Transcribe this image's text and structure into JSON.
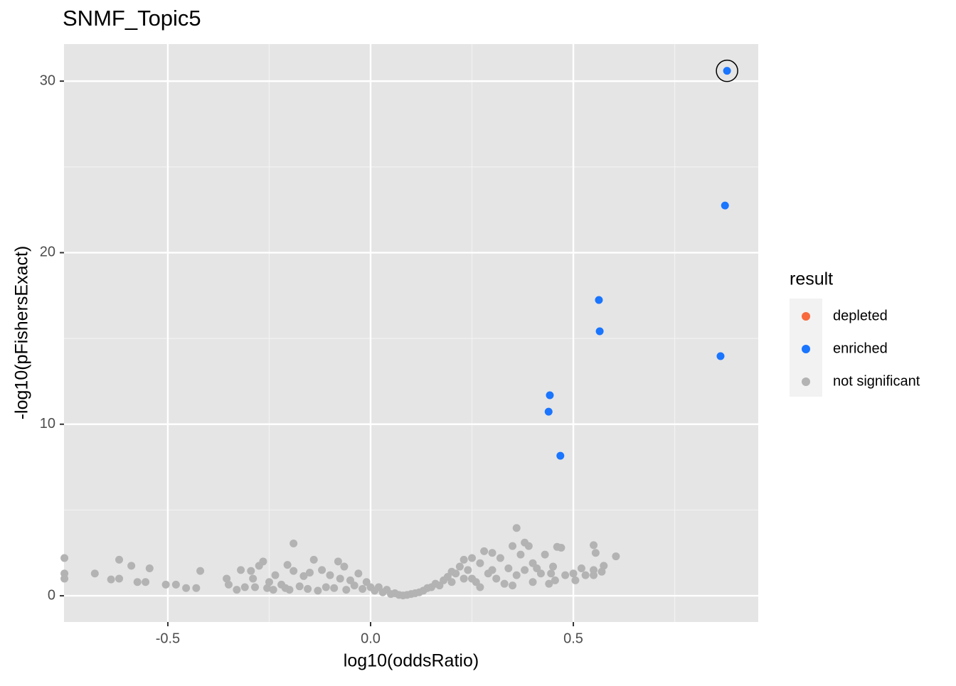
{
  "chart_data": {
    "type": "scatter",
    "title": "SNMF_Topic5",
    "x_label": "log10(oddsRatio)",
    "y_label": "-log10(pFishersExact)",
    "legend_title": "result",
    "legend_position": "right",
    "grid": true,
    "xlim": [
      -0.756,
      0.956
    ],
    "ylim": [
      -1.53,
      32.16
    ],
    "xticks": [
      -0.5,
      {
        "value": 0,
        "label": "0.0"
      },
      0.5
    ],
    "yticks": [
      0,
      10,
      20,
      30
    ],
    "xminor": [
      -0.25,
      0.25,
      0.75
    ],
    "yminor": [
      5,
      15,
      25
    ],
    "series": [
      {
        "name": "depleted",
        "color": "#f8693d",
        "x": [],
        "y": []
      },
      {
        "name": "enriched",
        "color": "#1a75ff",
        "x": [
          0.879,
          0.874,
          0.563,
          0.565,
          0.863,
          0.442,
          0.439,
          0.468
        ],
        "y": [
          30.6,
          22.75,
          17.24,
          15.42,
          13.97,
          11.69,
          10.73,
          8.16
        ]
      },
      {
        "name": "not significant",
        "color": "#b3b3b3",
        "x": [
          -0.755,
          -0.755,
          -0.755,
          -0.68,
          -0.64,
          -0.62,
          -0.62,
          -0.59,
          -0.575,
          -0.555,
          -0.545,
          -0.505,
          -0.48,
          -0.455,
          -0.43,
          -0.42,
          -0.355,
          -0.35,
          -0.33,
          -0.32,
          -0.31,
          -0.295,
          -0.29,
          -0.285,
          -0.275,
          -0.265,
          -0.255,
          -0.25,
          -0.24,
          -0.235,
          -0.22,
          -0.21,
          -0.205,
          -0.2,
          -0.19,
          -0.19,
          -0.175,
          -0.165,
          -0.155,
          -0.15,
          -0.14,
          -0.13,
          -0.12,
          -0.11,
          -0.1,
          -0.09,
          -0.08,
          -0.075,
          -0.065,
          -0.06,
          -0.05,
          -0.04,
          -0.03,
          -0.02,
          -0.01,
          0.0,
          0.01,
          0.02,
          0.03,
          0.04,
          0.05,
          0.06,
          0.07,
          0.08,
          0.09,
          0.1,
          0.11,
          0.12,
          0.13,
          0.14,
          0.15,
          0.16,
          0.17,
          0.18,
          0.19,
          0.2,
          0.2,
          0.21,
          0.22,
          0.23,
          0.23,
          0.24,
          0.25,
          0.26,
          0.27,
          0.28,
          0.29,
          0.3,
          0.31,
          0.32,
          0.33,
          0.34,
          0.35,
          0.36,
          0.36,
          0.37,
          0.38,
          0.38,
          0.39,
          0.4,
          0.4,
          0.41,
          0.42,
          0.43,
          0.44,
          0.445,
          0.455,
          0.46,
          0.47,
          0.48,
          0.5,
          0.505,
          0.52,
          0.53,
          0.55,
          0.55,
          0.555,
          0.57,
          0.575,
          0.605,
          0.55,
          0.45,
          0.35,
          0.27,
          0.25,
          0.3
        ],
        "y": [
          2.2,
          1.3,
          1.0,
          1.3,
          0.95,
          2.1,
          1.0,
          1.75,
          0.8,
          0.8,
          1.6,
          0.65,
          0.65,
          0.45,
          0.45,
          1.45,
          1.0,
          0.65,
          0.35,
          1.5,
          0.5,
          1.45,
          1.0,
          0.5,
          1.75,
          2.0,
          0.45,
          0.8,
          0.35,
          1.2,
          0.65,
          0.45,
          1.8,
          0.35,
          3.05,
          1.45,
          0.55,
          1.15,
          0.4,
          1.35,
          2.1,
          0.3,
          1.5,
          0.5,
          1.2,
          0.45,
          2.0,
          1.0,
          1.7,
          0.35,
          0.9,
          0.6,
          1.3,
          0.4,
          0.8,
          0.5,
          0.3,
          0.5,
          0.2,
          0.35,
          0.1,
          0.15,
          0.05,
          0.02,
          0.05,
          0.1,
          0.15,
          0.2,
          0.3,
          0.45,
          0.5,
          0.7,
          0.6,
          0.9,
          1.1,
          0.8,
          1.4,
          1.3,
          1.7,
          1.0,
          2.1,
          1.5,
          2.2,
          0.8,
          1.9,
          2.6,
          1.3,
          2.5,
          1.0,
          2.2,
          0.7,
          1.6,
          2.9,
          1.2,
          3.95,
          2.4,
          3.1,
          1.5,
          2.9,
          1.9,
          0.8,
          1.6,
          1.3,
          2.4,
          0.7,
          1.3,
          0.9,
          2.85,
          2.8,
          1.2,
          1.3,
          0.9,
          1.6,
          1.2,
          1.5,
          2.95,
          2.5,
          1.4,
          1.75,
          2.3,
          1.2,
          1.7,
          0.6,
          0.5,
          1.0,
          1.5
        ]
      }
    ]
  }
}
